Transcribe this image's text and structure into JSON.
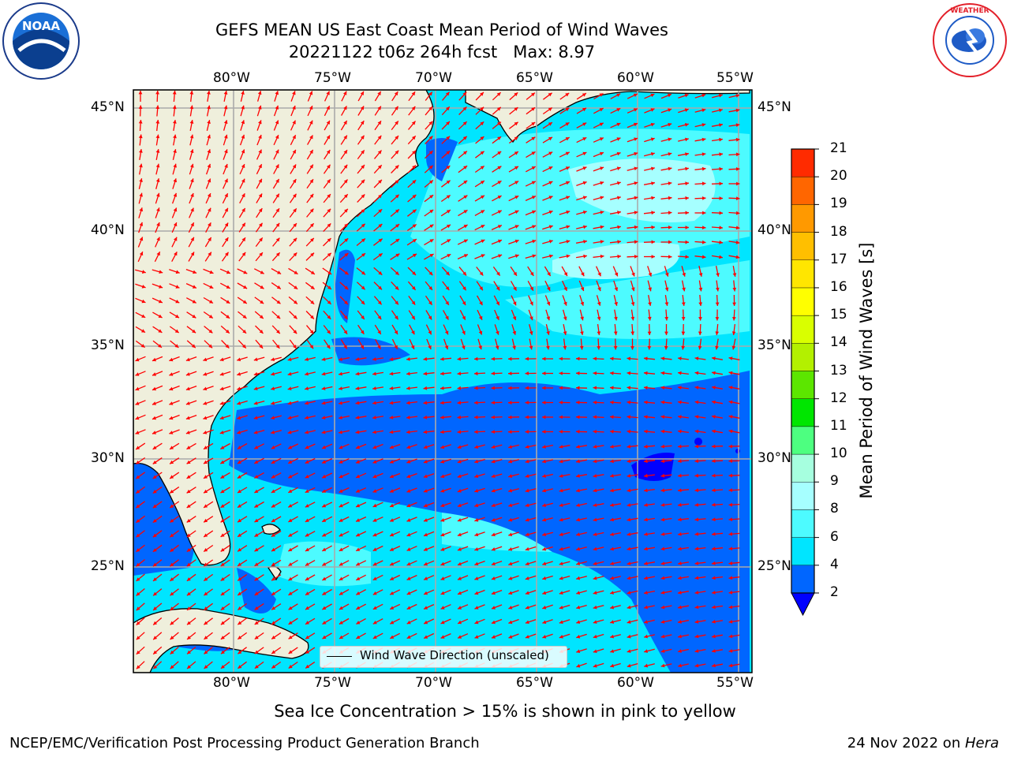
{
  "header": {
    "title_line1": "GEFS MEAN US East Coast Mean Period of Wind Waves",
    "title_line2": "20221122 t06z 264h fcst   Max: 8.97"
  },
  "logos": {
    "left": {
      "icon": "noaa-logo-icon",
      "text": "NOAA",
      "ring_text": "NATIONAL OCEANIC AND ATMOSPHERIC ADMINISTRATION · U.S. DEPARTMENT OF COMMERCE"
    },
    "right": {
      "icon": "nws-logo-icon",
      "ring_text": "NATIONAL WEATHER SERVICE"
    }
  },
  "map": {
    "lon_ticks": [
      "80°W",
      "75°W",
      "70°W",
      "65°W",
      "60°W",
      "55°W"
    ],
    "lat_ticks": [
      "45°N",
      "40°N",
      "35°N",
      "30°N",
      "25°N"
    ],
    "land_color": "#efefdc",
    "gridline_color": "#aaaaaa",
    "arrow_color": "#ff0000",
    "legend_label": "Wind Wave Direction (unscaled)"
  },
  "colorbar": {
    "label": "Mean Period of Wind Waves [s]",
    "levels": [
      "2",
      "4",
      "6",
      "8",
      "9",
      "10",
      "11",
      "12",
      "13",
      "14",
      "15",
      "16",
      "17",
      "18",
      "19",
      "20",
      "21"
    ],
    "colors": [
      "#0066ff",
      "#00e5ff",
      "#4dfbff",
      "#a6ffff",
      "#a6ffdf",
      "#4dff80",
      "#00e600",
      "#5ce600",
      "#b3f000",
      "#d9ff00",
      "#ffff00",
      "#ffe600",
      "#ffbf00",
      "#ff9900",
      "#ff6600",
      "#ff2b00"
    ],
    "under_color": "#0000ff"
  },
  "caption": "Sea Ice Concentration > 15% is shown in pink to yellow",
  "footer": {
    "left": "NCEP/EMC/Verification Post Processing Product Generation Branch",
    "right_date": "24 Nov 2022 on ",
    "right_host": "Hera"
  }
}
